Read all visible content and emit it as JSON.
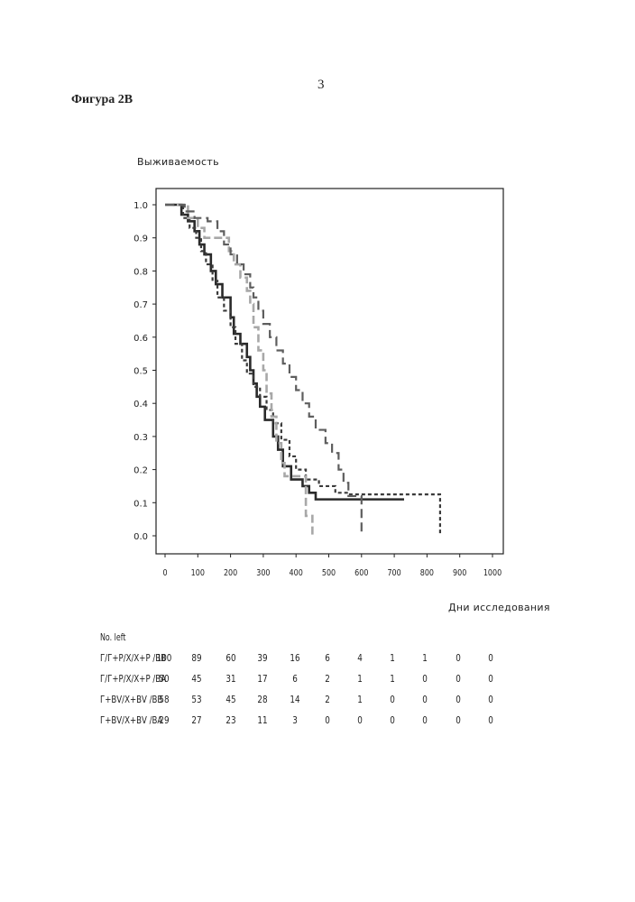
{
  "page_number": "3",
  "figure_label": "Фигура 2В",
  "chart_data": {
    "type": "line",
    "step": true,
    "ylabel": "Выживаемость",
    "xlabel": "Дни исследования",
    "xlim": [
      0,
      1000
    ],
    "ylim": [
      0,
      1
    ],
    "xticks": [
      0,
      100,
      200,
      300,
      400,
      500,
      600,
      700,
      800,
      900,
      1000
    ],
    "yticks": [
      0.0,
      0.1,
      0.2,
      0.3,
      0.4,
      0.5,
      0.6,
      0.7,
      0.8,
      0.9,
      1.0
    ],
    "grid": false,
    "series": [
      {
        "style": "solid dark",
        "color": "#2a2a2a",
        "points": [
          [
            0,
            1.0
          ],
          [
            40,
            1.0
          ],
          [
            50,
            0.97
          ],
          [
            70,
            0.95
          ],
          [
            90,
            0.92
          ],
          [
            105,
            0.88
          ],
          [
            120,
            0.85
          ],
          [
            140,
            0.8
          ],
          [
            155,
            0.76
          ],
          [
            175,
            0.72
          ],
          [
            200,
            0.66
          ],
          [
            210,
            0.61
          ],
          [
            230,
            0.58
          ],
          [
            250,
            0.54
          ],
          [
            260,
            0.5
          ],
          [
            270,
            0.46
          ],
          [
            280,
            0.42
          ],
          [
            290,
            0.39
          ],
          [
            305,
            0.35
          ],
          [
            330,
            0.3
          ],
          [
            345,
            0.26
          ],
          [
            360,
            0.21
          ],
          [
            385,
            0.17
          ],
          [
            420,
            0.15
          ],
          [
            440,
            0.13
          ],
          [
            460,
            0.11
          ],
          [
            730,
            0.11
          ]
        ]
      },
      {
        "style": "short-dash dark",
        "color": "#3a3a3a",
        "points": [
          [
            0,
            1.0
          ],
          [
            45,
            1.0
          ],
          [
            55,
            0.96
          ],
          [
            75,
            0.93
          ],
          [
            95,
            0.9
          ],
          [
            110,
            0.86
          ],
          [
            125,
            0.82
          ],
          [
            145,
            0.77
          ],
          [
            160,
            0.72
          ],
          [
            180,
            0.68
          ],
          [
            200,
            0.63
          ],
          [
            215,
            0.58
          ],
          [
            235,
            0.53
          ],
          [
            250,
            0.49
          ],
          [
            270,
            0.45
          ],
          [
            290,
            0.42
          ],
          [
            310,
            0.38
          ],
          [
            330,
            0.34
          ],
          [
            355,
            0.29
          ],
          [
            380,
            0.24
          ],
          [
            400,
            0.2
          ],
          [
            430,
            0.17
          ],
          [
            470,
            0.15
          ],
          [
            520,
            0.13
          ],
          [
            560,
            0.125
          ],
          [
            840,
            0.125
          ],
          [
            840,
            0.0
          ]
        ]
      },
      {
        "style": "long-dash light",
        "color": "#a8a8a8",
        "points": [
          [
            0,
            1.0
          ],
          [
            60,
            1.0
          ],
          [
            70,
            0.96
          ],
          [
            100,
            0.93
          ],
          [
            120,
            0.9
          ],
          [
            180,
            0.9
          ],
          [
            195,
            0.86
          ],
          [
            210,
            0.82
          ],
          [
            230,
            0.78
          ],
          [
            250,
            0.74
          ],
          [
            260,
            0.7
          ],
          [
            270,
            0.63
          ],
          [
            285,
            0.56
          ],
          [
            300,
            0.5
          ],
          [
            310,
            0.43
          ],
          [
            325,
            0.36
          ],
          [
            340,
            0.28
          ],
          [
            355,
            0.22
          ],
          [
            365,
            0.18
          ],
          [
            420,
            0.18
          ],
          [
            430,
            0.06
          ],
          [
            450,
            0.06
          ],
          [
            450,
            0.0
          ]
        ]
      },
      {
        "style": "long-dash medium",
        "color": "#5e5e5e",
        "points": [
          [
            0,
            1.0
          ],
          [
            50,
            1.0
          ],
          [
            60,
            0.98
          ],
          [
            90,
            0.96
          ],
          [
            130,
            0.95
          ],
          [
            160,
            0.92
          ],
          [
            180,
            0.88
          ],
          [
            200,
            0.85
          ],
          [
            220,
            0.82
          ],
          [
            240,
            0.79
          ],
          [
            260,
            0.75
          ],
          [
            270,
            0.72
          ],
          [
            285,
            0.68
          ],
          [
            300,
            0.64
          ],
          [
            320,
            0.6
          ],
          [
            340,
            0.56
          ],
          [
            360,
            0.52
          ],
          [
            380,
            0.48
          ],
          [
            400,
            0.44
          ],
          [
            420,
            0.4
          ],
          [
            440,
            0.36
          ],
          [
            460,
            0.32
          ],
          [
            490,
            0.28
          ],
          [
            510,
            0.25
          ],
          [
            530,
            0.2
          ],
          [
            545,
            0.16
          ],
          [
            560,
            0.12
          ],
          [
            600,
            0.12
          ],
          [
            600,
            0.0
          ]
        ]
      }
    ],
    "risk_table": {
      "title": "No. left",
      "rows": [
        {
          "name": "Г/Г+Р/Х/Х+Р /ВВ",
          "values": [
            "100",
            "89",
            "60",
            "39",
            "16",
            "6",
            "4",
            "1",
            "1",
            "0",
            "0"
          ]
        },
        {
          "name": "Г/Г+Р/Х/Х+Р /ВА",
          "values": [
            "50",
            "45",
            "31",
            "17",
            "6",
            "2",
            "1",
            "1",
            "0",
            "0",
            "0"
          ]
        },
        {
          "name": "Г+ВV/Х+ВV /ВВ",
          "values": [
            "58",
            "53",
            "45",
            "28",
            "14",
            "2",
            "1",
            "0",
            "0",
            "0",
            "0"
          ]
        },
        {
          "name": "Г+ВV/Х+ВV /ВА",
          "values": [
            "29",
            "27",
            "23",
            "11",
            "3",
            "0",
            "0",
            "0",
            "0",
            "0",
            "0"
          ]
        }
      ]
    }
  }
}
